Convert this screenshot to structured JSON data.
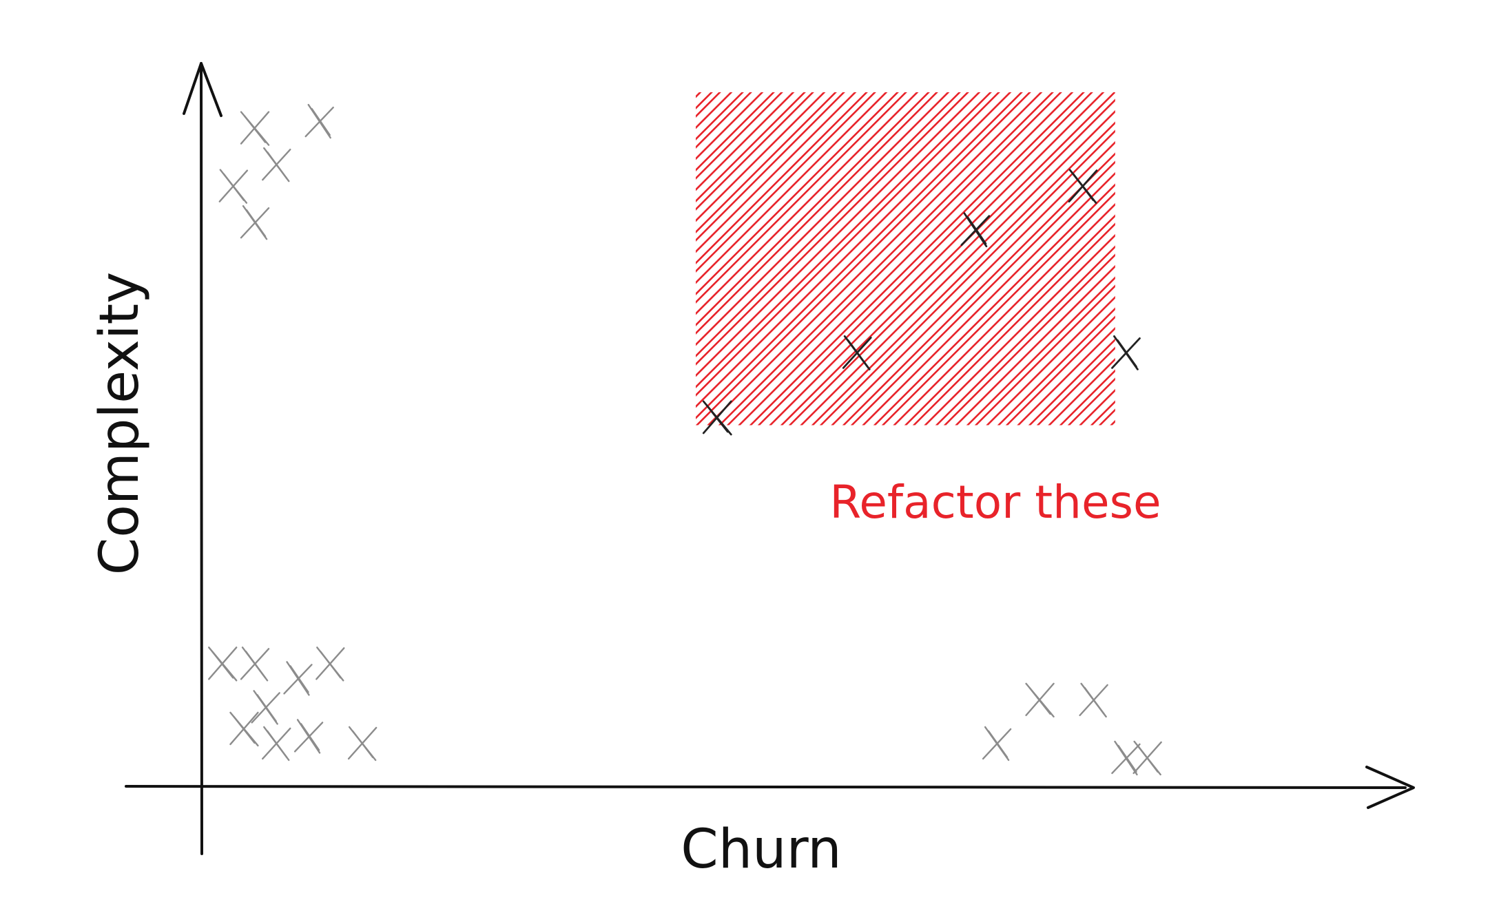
{
  "chart_data": {
    "type": "scatter",
    "title": "",
    "xlabel": "Churn",
    "ylabel": "Complexity",
    "xlim": [
      0,
      100
    ],
    "ylim": [
      0,
      100
    ],
    "grid": false,
    "legend": "none",
    "colors": {
      "axis": "#111111",
      "point": "#8c8c8c",
      "highlight_point": "#222222",
      "highlight": "#e8232a"
    },
    "highlight_region": {
      "label": "Refactor these",
      "x": [
        46,
        85
      ],
      "y": [
        50,
        96
      ]
    },
    "series": [
      {
        "points": [
          [
            5,
            91
          ],
          [
            7,
            86
          ],
          [
            11,
            92
          ],
          [
            3,
            83
          ],
          [
            5,
            78
          ],
          [
            2,
            17
          ],
          [
            5,
            17
          ],
          [
            9,
            15
          ],
          [
            12,
            17
          ],
          [
            6,
            11
          ],
          [
            4,
            8
          ],
          [
            7,
            6
          ],
          [
            10,
            7
          ],
          [
            15,
            6
          ],
          [
            74,
            6
          ],
          [
            78,
            12
          ],
          [
            83,
            12
          ],
          [
            86,
            4
          ],
          [
            88,
            4
          ]
        ]
      },
      {
        "points": [
          [
            48,
            51
          ],
          [
            61,
            60
          ],
          [
            72,
            77
          ],
          [
            82,
            83
          ],
          [
            86,
            60
          ]
        ]
      }
    ]
  }
}
